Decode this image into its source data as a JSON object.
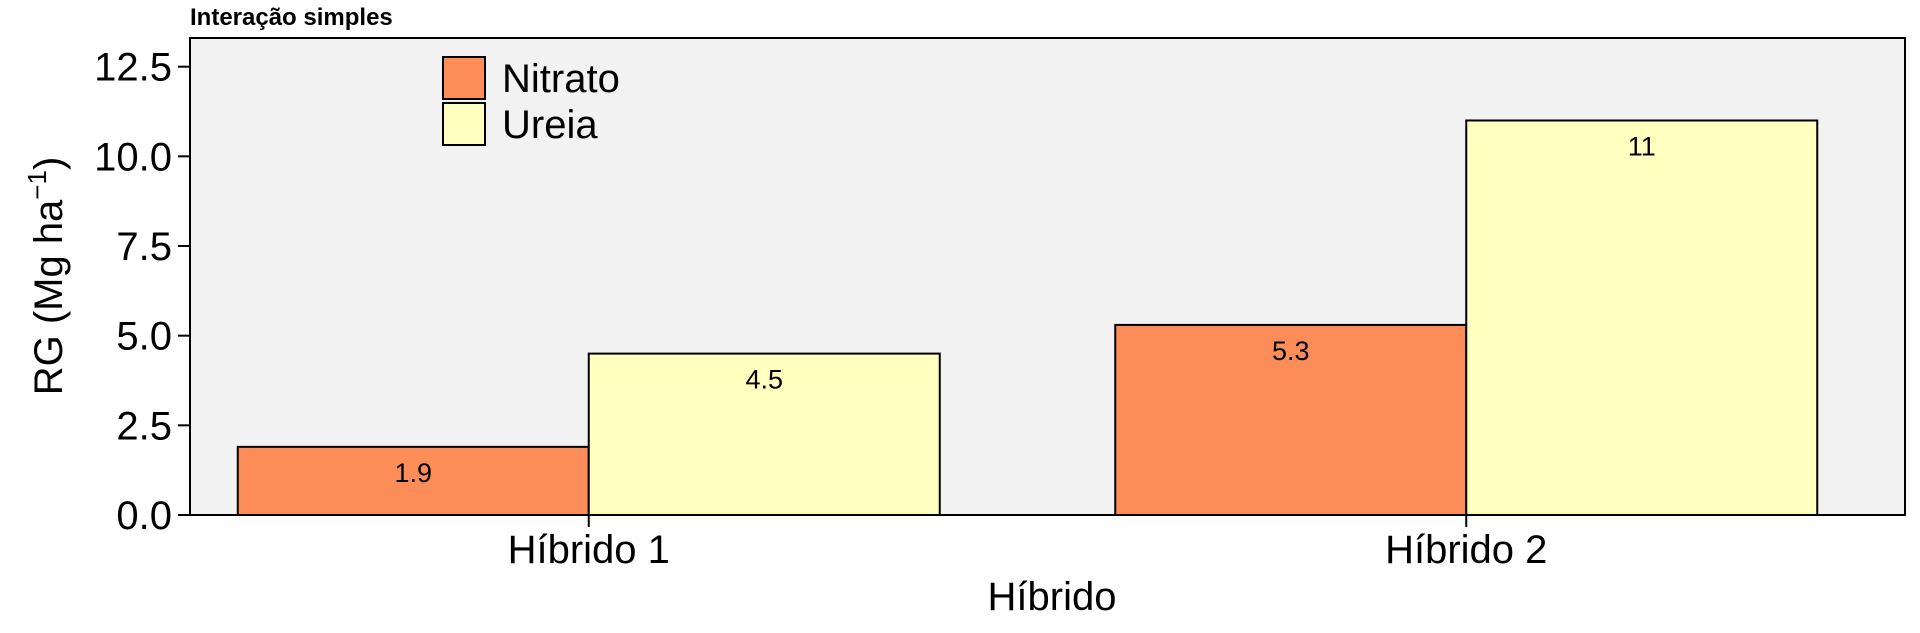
{
  "chart_data": {
    "type": "bar",
    "title": "Interação simples",
    "xlabel": "Híbrido",
    "ylabel": "RG (Mg ha",
    "ylabel_sup": "−1",
    "ylabel_close": ")",
    "categories": [
      "Híbrido 1",
      "Híbrido 2"
    ],
    "series": [
      {
        "name": "Nitrato",
        "color": "#fc8d59",
        "values": [
          1.9,
          5.3
        ],
        "labels": [
          "1.9",
          "5.3"
        ]
      },
      {
        "name": "Ureia",
        "color": "#ffffbf",
        "values": [
          4.5,
          11
        ],
        "labels": [
          "4.5",
          "11"
        ]
      }
    ],
    "ylim": [
      0,
      12.5
    ],
    "yticks": [
      "0.0",
      "2.5",
      "5.0",
      "7.5",
      "10.0",
      "12.5"
    ],
    "panel_background": "#f2f2f2",
    "grid": false,
    "legend_position": "top-left"
  }
}
